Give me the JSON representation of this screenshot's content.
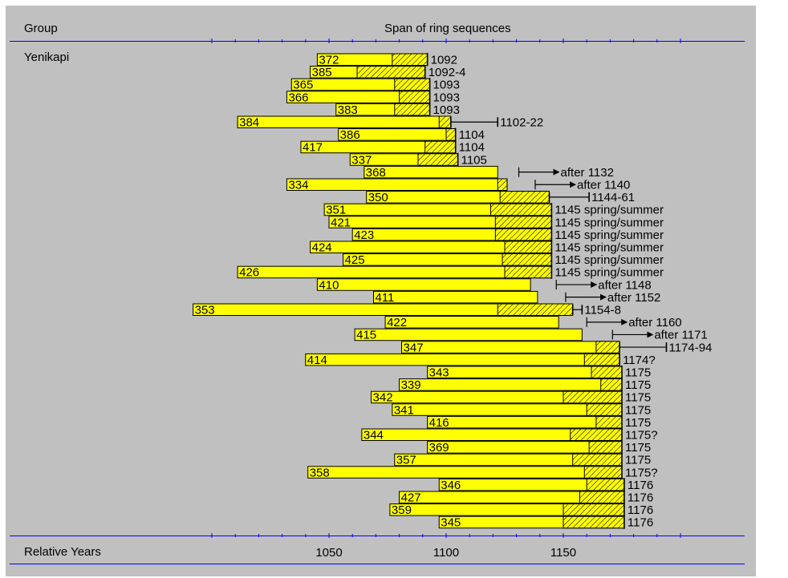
{
  "header": {
    "group_label": "Group",
    "span_label": "Span of ring sequences"
  },
  "footer": {
    "axis_label": "Relative Years"
  },
  "colors": {
    "panel_bg": "#c0c0c0",
    "bar_fill": "#ffff00",
    "rule": "#0000ff",
    "hatch_stroke": "#000000"
  },
  "chart_data": {
    "type": "bar",
    "orientation": "horizontal",
    "group": "Yenikapi",
    "xlim": [
      1000,
      1200
    ],
    "x_ticks": [
      1050,
      1100,
      1150
    ],
    "legend": false,
    "samples": [
      {
        "id": "372",
        "start": 1045,
        "heart_end": 1077,
        "end": 1092,
        "date_label": "1092"
      },
      {
        "id": "385",
        "start": 1042,
        "heart_end": 1062,
        "end": 1091,
        "date_label": "1092-4"
      },
      {
        "id": "365",
        "start": 1034,
        "heart_end": 1078,
        "end": 1093,
        "date_label": "1093"
      },
      {
        "id": "366",
        "start": 1032,
        "heart_end": 1080,
        "end": 1093,
        "date_label": "1093"
      },
      {
        "id": "383",
        "start": 1053,
        "heart_end": 1078,
        "end": 1093,
        "date_label": "1093"
      },
      {
        "id": "384",
        "start": 1011,
        "heart_end": 1097,
        "end": 1102,
        "date_label": "1102-22",
        "range_end": 1122
      },
      {
        "id": "386",
        "start": 1054,
        "heart_end": 1100,
        "end": 1104,
        "date_label": "1104"
      },
      {
        "id": "417",
        "start": 1038,
        "heart_end": 1091,
        "end": 1104,
        "date_label": "1104"
      },
      {
        "id": "337",
        "start": 1059,
        "heart_end": 1088,
        "end": 1105,
        "date_label": "1105"
      },
      {
        "id": "368",
        "start": 1065,
        "heart_end": null,
        "end": 1122,
        "date_label": "after 1132",
        "arrow_from": 1131
      },
      {
        "id": "334",
        "start": 1032,
        "heart_end": 1122,
        "end": 1126,
        "date_label": "after 1140",
        "arrow_from": 1138
      },
      {
        "id": "350",
        "start": 1066,
        "heart_end": 1123,
        "end": 1144,
        "date_label": "1144-61",
        "range_end": 1161
      },
      {
        "id": "351",
        "start": 1048,
        "heart_end": 1119,
        "end": 1145,
        "date_label": "1145 spring/summer"
      },
      {
        "id": "421",
        "start": 1050,
        "heart_end": 1121,
        "end": 1145,
        "date_label": "1145 spring/summer"
      },
      {
        "id": "423",
        "start": 1060,
        "heart_end": 1121,
        "end": 1145,
        "date_label": "1145 spring/summer"
      },
      {
        "id": "424",
        "start": 1042,
        "heart_end": 1125,
        "end": 1145,
        "date_label": "1145 spring/summer"
      },
      {
        "id": "425",
        "start": 1056,
        "heart_end": 1124,
        "end": 1145,
        "date_label": "1145 spring/summer"
      },
      {
        "id": "426",
        "start": 1011,
        "heart_end": 1125,
        "end": 1145,
        "date_label": "1145 spring/summer"
      },
      {
        "id": "410",
        "start": 1045,
        "heart_end": null,
        "end": 1136,
        "date_label": "after 1148",
        "arrow_from": 1147
      },
      {
        "id": "411",
        "start": 1069,
        "heart_end": null,
        "end": 1139,
        "date_label": "after 1152",
        "arrow_from": 1151
      },
      {
        "id": "353",
        "start": 992,
        "heart_end": 1122,
        "end": 1154,
        "date_label": "1154-8",
        "range_end": 1158
      },
      {
        "id": "422",
        "start": 1074,
        "heart_end": null,
        "end": 1148,
        "date_label": "after 1160",
        "arrow_from": 1160
      },
      {
        "id": "415",
        "start": 1061,
        "heart_end": null,
        "end": 1158,
        "date_label": "after 1171",
        "arrow_from": 1171
      },
      {
        "id": "347",
        "start": 1081,
        "heart_end": 1164,
        "end": 1174,
        "date_label": "1174-94",
        "range_end": 1194
      },
      {
        "id": "414",
        "start": 1040,
        "heart_end": 1159,
        "end": 1174,
        "date_label": "1174?"
      },
      {
        "id": "343",
        "start": 1092,
        "heart_end": 1162,
        "end": 1175,
        "date_label": "1175"
      },
      {
        "id": "339",
        "start": 1080,
        "heart_end": 1166,
        "end": 1175,
        "date_label": "1175"
      },
      {
        "id": "342",
        "start": 1068,
        "heart_end": 1150,
        "end": 1175,
        "date_label": "1175"
      },
      {
        "id": "341",
        "start": 1077,
        "heart_end": 1160,
        "end": 1175,
        "date_label": "1175"
      },
      {
        "id": "416",
        "start": 1092,
        "heart_end": 1164,
        "end": 1175,
        "date_label": "1175"
      },
      {
        "id": "344",
        "start": 1064,
        "heart_end": 1153,
        "end": 1175,
        "date_label": "1175?"
      },
      {
        "id": "369",
        "start": 1092,
        "heart_end": 1161,
        "end": 1175,
        "date_label": "1175"
      },
      {
        "id": "357",
        "start": 1078,
        "heart_end": 1154,
        "end": 1175,
        "date_label": "1175"
      },
      {
        "id": "358",
        "start": 1041,
        "heart_end": 1159,
        "end": 1175,
        "date_label": "1175?"
      },
      {
        "id": "346",
        "start": 1097,
        "heart_end": 1160,
        "end": 1176,
        "date_label": "1176"
      },
      {
        "id": "427",
        "start": 1080,
        "heart_end": 1157,
        "end": 1176,
        "date_label": "1176"
      },
      {
        "id": "359",
        "start": 1076,
        "heart_end": 1150,
        "end": 1176,
        "date_label": "1176"
      },
      {
        "id": "345",
        "start": 1097,
        "heart_end": 1150,
        "end": 1176,
        "date_label": "1176"
      }
    ]
  }
}
